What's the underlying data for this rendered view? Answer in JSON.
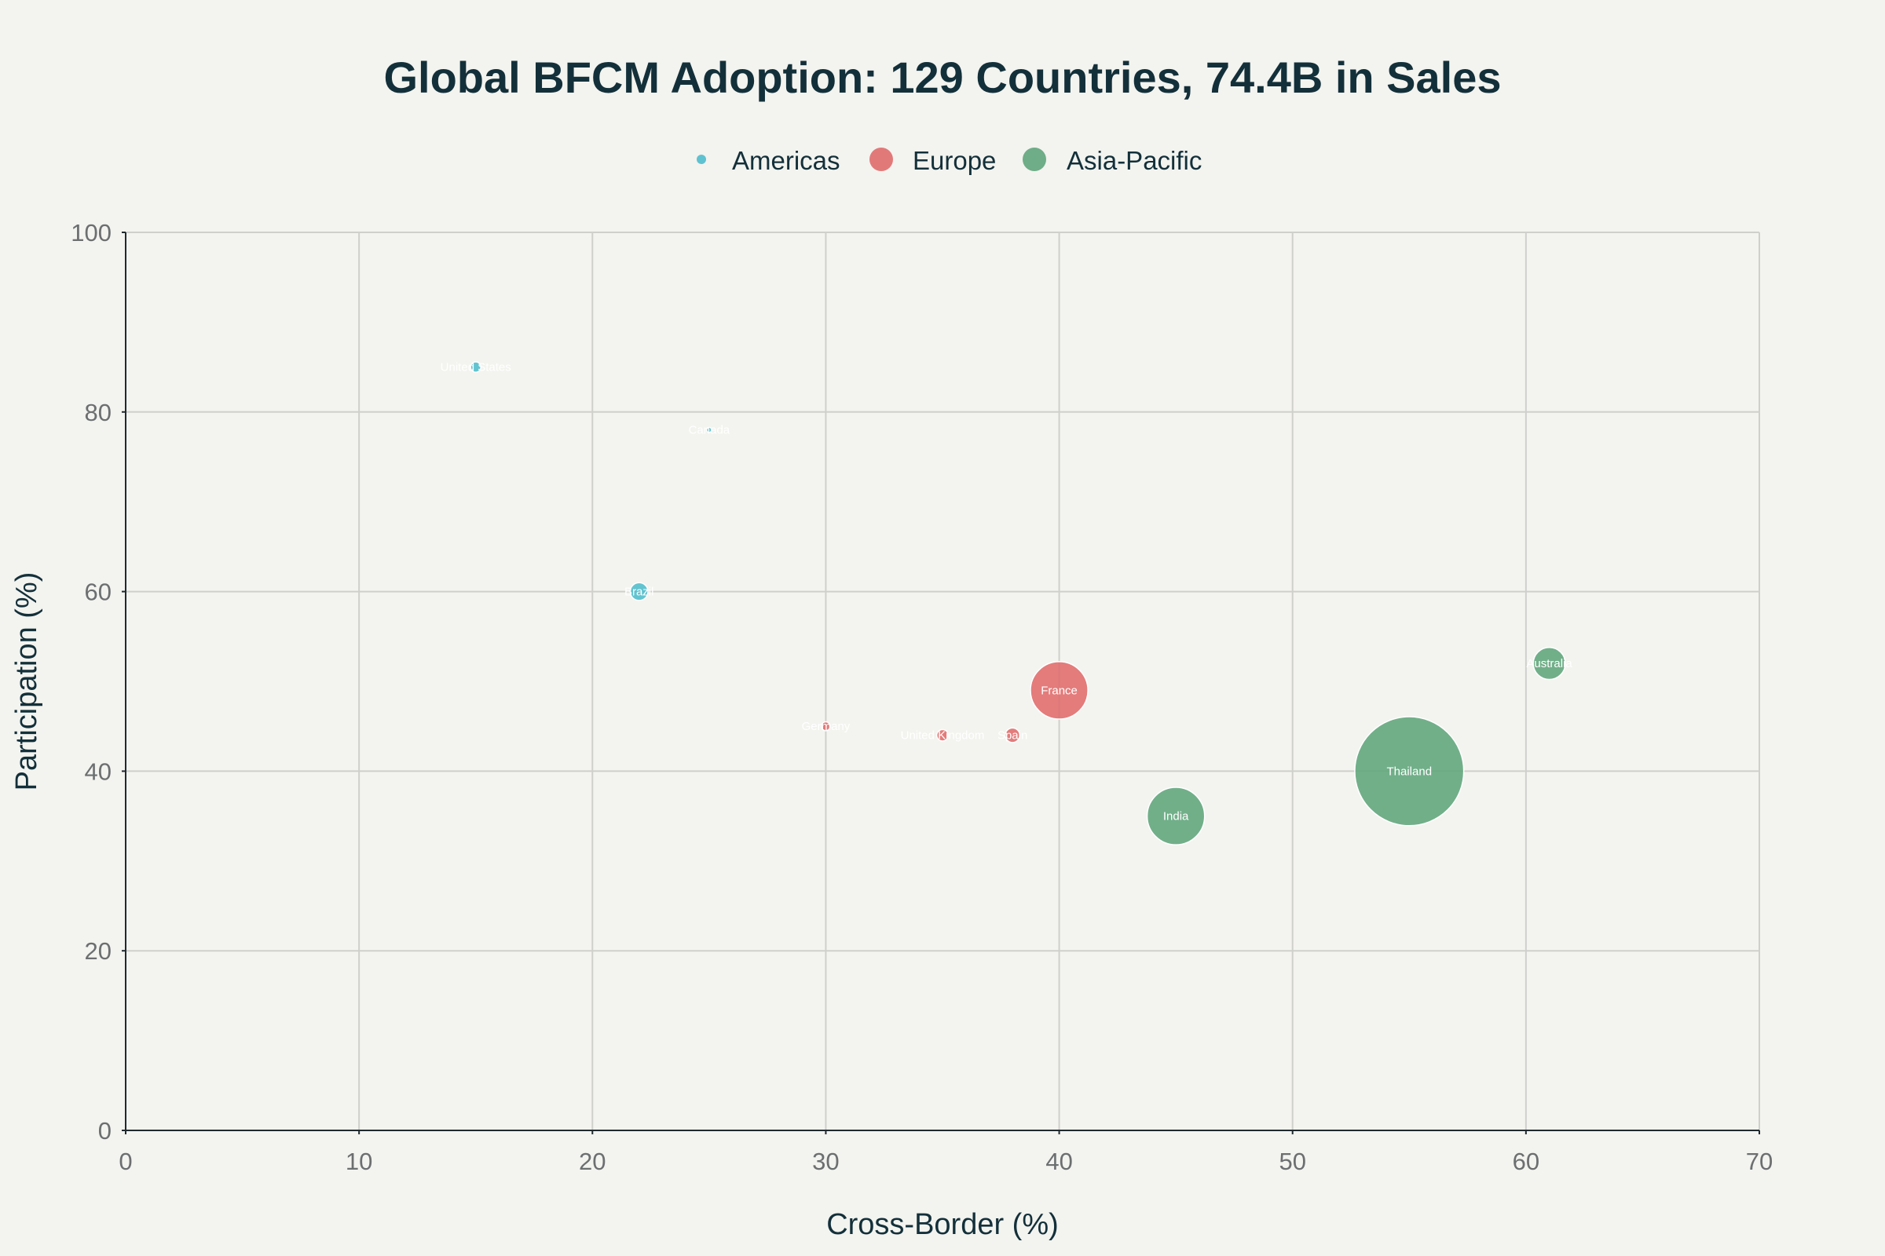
{
  "chart_data": {
    "type": "scatter",
    "title": "Global BFCM Adoption: 129 Countries, 74.4B in Sales",
    "xlabel": "Cross-Border (%)",
    "ylabel": "Participation (%)",
    "xlim": [
      0,
      70
    ],
    "ylim": [
      0,
      100
    ],
    "xticks": [
      0,
      10,
      20,
      30,
      40,
      50,
      60,
      70
    ],
    "yticks": [
      0,
      20,
      40,
      60,
      80,
      100
    ],
    "grid": true,
    "legend_position": "top-center",
    "series": [
      {
        "name": "Americas",
        "color": "#4fbdcc",
        "points": [
          {
            "label": "United States",
            "x": 15,
            "y": 85,
            "size": 0.4
          },
          {
            "label": "Canada",
            "x": 25,
            "y": 78,
            "size": 0.1
          },
          {
            "label": "Brazil",
            "x": 22,
            "y": 60,
            "size": 1.2
          }
        ]
      },
      {
        "name": "Europe",
        "color": "#e06b6b",
        "points": [
          {
            "label": "Germany",
            "x": 30,
            "y": 45,
            "size": 0.3
          },
          {
            "label": "United Kingdom",
            "x": 35,
            "y": 44,
            "size": 0.5
          },
          {
            "label": "Spain",
            "x": 38,
            "y": 44,
            "size": 0.8
          },
          {
            "label": "France",
            "x": 40,
            "y": 49,
            "size": 12.5
          }
        ]
      },
      {
        "name": "Asia-Pacific",
        "color": "#5fa57b",
        "points": [
          {
            "label": "India",
            "x": 45,
            "y": 35,
            "size": 12.5
          },
          {
            "label": "Thailand",
            "x": 55,
            "y": 40,
            "size": 45
          },
          {
            "label": "Australia",
            "x": 61,
            "y": 52,
            "size": 3.9
          }
        ]
      }
    ]
  }
}
